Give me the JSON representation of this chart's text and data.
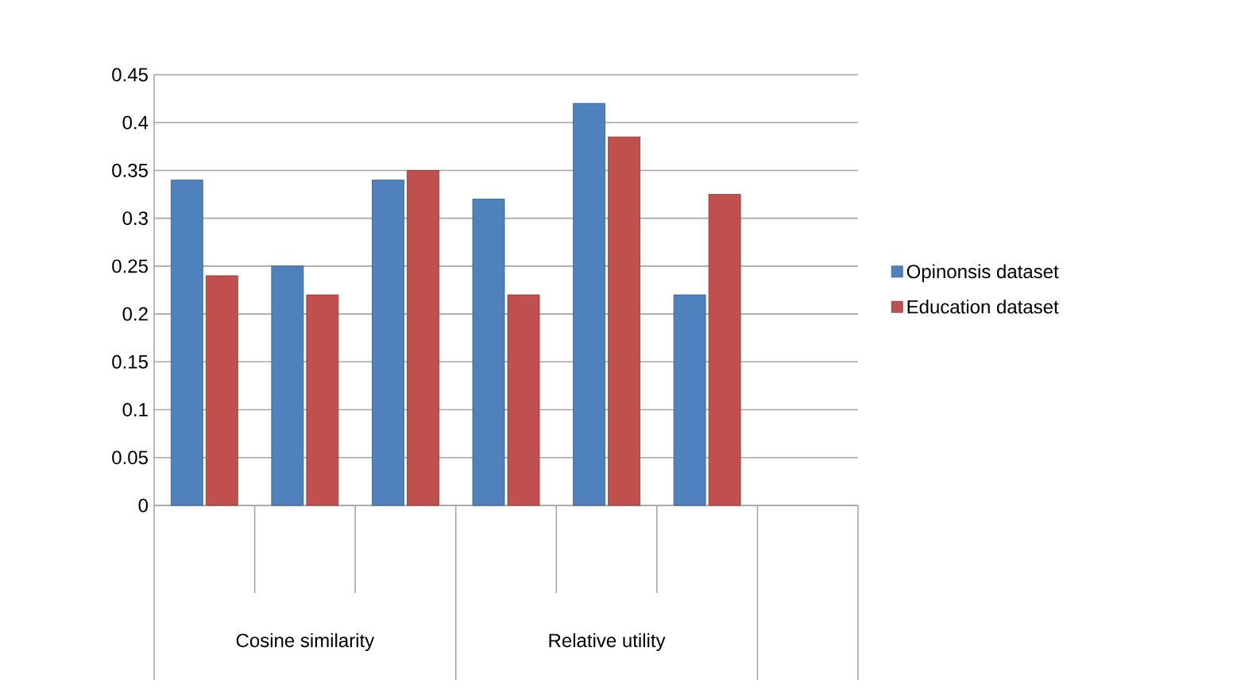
{
  "chart_data": {
    "type": "bar",
    "categories": [
      null,
      null,
      null,
      null,
      null,
      null,
      null
    ],
    "series": [
      {
        "name": "Opinonsis dataset",
        "color": "#4f81bd",
        "values": [
          0.34,
          0.25,
          0.34,
          0.32,
          0.42,
          0.22,
          null
        ]
      },
      {
        "name": "Education dataset",
        "color": "#c0504d",
        "values": [
          0.24,
          0.22,
          0.35,
          0.22,
          0.385,
          0.325,
          null
        ]
      }
    ],
    "annotations": [
      "Cosine similarity",
      "Relative utility"
    ],
    "ylim": [
      0,
      0.45
    ],
    "yticks": [
      0,
      0.05,
      0.1,
      0.15,
      0.2,
      0.25,
      0.3,
      0.35,
      0.4,
      0.45
    ],
    "grid": "y",
    "legend": "right"
  }
}
